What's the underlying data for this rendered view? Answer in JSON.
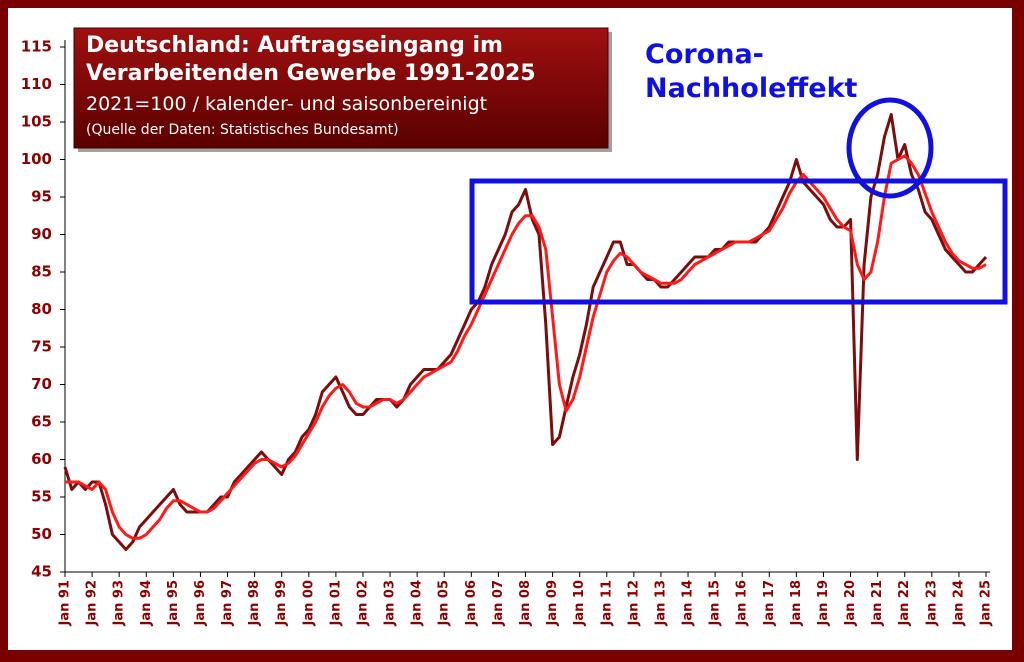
{
  "chart_data": {
    "type": "line",
    "title": [
      "Deutschland: Auftragseingang im",
      "Verarbeitenden Gewerbe 1991-2025"
    ],
    "subtitle": "2021=100 / kalender- und saisonbereinigt",
    "source": "(Quelle der Daten: Statistisches Bundesamt)",
    "annotation": [
      "Corona-",
      "Nachholeffekt"
    ],
    "categories": [
      "Jan 91",
      null,
      null,
      null,
      "Jan 92",
      null,
      null,
      null,
      "Jan 93",
      null,
      null,
      null,
      "Jan 94",
      null,
      null,
      null,
      "Jan 95",
      null,
      null,
      null,
      "Jan 96",
      null,
      null,
      null,
      "Jan 97",
      null,
      null,
      null,
      "Jan 98",
      null,
      null,
      null,
      "Jan 99",
      null,
      null,
      null,
      "Jan 00",
      null,
      null,
      null,
      "Jan 01",
      null,
      null,
      null,
      "Jan 02",
      null,
      null,
      null,
      "Jan 03",
      null,
      null,
      null,
      "Jan 04",
      null,
      null,
      null,
      "Jan 05",
      null,
      null,
      null,
      "Jan 06",
      null,
      null,
      null,
      "Jan 07",
      null,
      null,
      null,
      "Jan 08",
      null,
      null,
      null,
      "Jan 09",
      null,
      null,
      null,
      "Jan 10",
      null,
      null,
      null,
      "Jan 11",
      null,
      null,
      null,
      "Jan 12",
      null,
      null,
      null,
      "Jan 13",
      null,
      null,
      null,
      "Jan 14",
      null,
      null,
      null,
      "Jan 15",
      null,
      null,
      null,
      "Jan 16",
      null,
      null,
      null,
      "Jan 17",
      null,
      null,
      null,
      "Jan 18",
      null,
      null,
      null,
      "Jan 19",
      null,
      null,
      null,
      "Jan 20",
      null,
      null,
      null,
      "Jan 21",
      null,
      null,
      null,
      "Jan 22",
      null,
      null,
      null,
      "Jan 23",
      null,
      null,
      null,
      "Jan 24",
      null,
      null,
      null,
      "Jan 25"
    ],
    "series": [
      {
        "color": "#7b0d0d",
        "values": [
          59,
          56,
          57,
          56,
          57,
          57,
          54,
          50,
          49,
          48,
          49,
          51,
          52,
          53,
          54,
          55,
          56,
          54,
          53,
          53,
          53,
          53,
          54,
          55,
          55,
          57,
          58,
          59,
          60,
          61,
          60,
          59,
          58,
          60,
          61,
          63,
          64,
          66,
          69,
          70,
          71,
          69,
          67,
          66,
          66,
          67,
          68,
          68,
          68,
          67,
          68,
          70,
          71,
          72,
          72,
          72,
          73,
          74,
          76,
          78,
          80,
          81,
          83,
          86,
          88,
          90,
          93,
          94,
          96,
          92,
          90,
          78,
          62,
          63,
          67,
          71,
          74,
          78,
          83,
          85,
          87,
          89,
          89,
          86,
          86,
          85,
          84,
          84,
          83,
          83,
          84,
          85,
          86,
          87,
          87,
          87,
          88,
          88,
          89,
          89,
          89,
          89,
          89,
          90,
          91,
          93,
          95,
          97,
          100,
          97,
          96,
          95,
          94,
          92,
          91,
          91,
          92,
          60,
          86,
          95,
          98,
          103,
          106,
          100,
          102,
          98,
          96,
          93,
          92,
          90,
          88,
          87,
          86,
          85,
          85,
          86,
          87
        ]
      },
      {
        "color": "#ff1a1a",
        "values": [
          57,
          57,
          57,
          56.5,
          56,
          57,
          56,
          53,
          51,
          50,
          49.5,
          49.5,
          50,
          51,
          52,
          53.5,
          54.5,
          54.5,
          54,
          53.5,
          53,
          53,
          53.5,
          54.5,
          55.5,
          56.5,
          57.5,
          58.5,
          59.5,
          60,
          60,
          59.5,
          59,
          59.5,
          60.5,
          62,
          63.5,
          65,
          67,
          68.5,
          69.5,
          70,
          69,
          67.5,
          67,
          67,
          67.5,
          68,
          68,
          67.5,
          68,
          69,
          70,
          71,
          71.5,
          72,
          72.5,
          73,
          74.5,
          76.5,
          78,
          80,
          82,
          84,
          86,
          88,
          90,
          91.5,
          92.5,
          92.5,
          91,
          88,
          79,
          70,
          66.5,
          68,
          71,
          75,
          79,
          82,
          85,
          86.5,
          87.5,
          87,
          86,
          85,
          84.5,
          84,
          83.5,
          83.5,
          83.5,
          84,
          85,
          86,
          86.5,
          87,
          87.5,
          88,
          88.5,
          89,
          89,
          89,
          89.5,
          90,
          90.5,
          92,
          93.5,
          95.5,
          97,
          98,
          97,
          96,
          95,
          93.5,
          92,
          91,
          90.5,
          86,
          84,
          85,
          89,
          95,
          99.5,
          100,
          100.5,
          99.5,
          98,
          95.5,
          93,
          91,
          89,
          87.5,
          86.5,
          86,
          85.5,
          85.5,
          86
        ]
      }
    ],
    "ylim": [
      45,
      115
    ],
    "yticks": [
      45,
      50,
      55,
      60,
      65,
      70,
      75,
      80,
      85,
      90,
      95,
      100,
      105,
      110,
      115
    ]
  }
}
